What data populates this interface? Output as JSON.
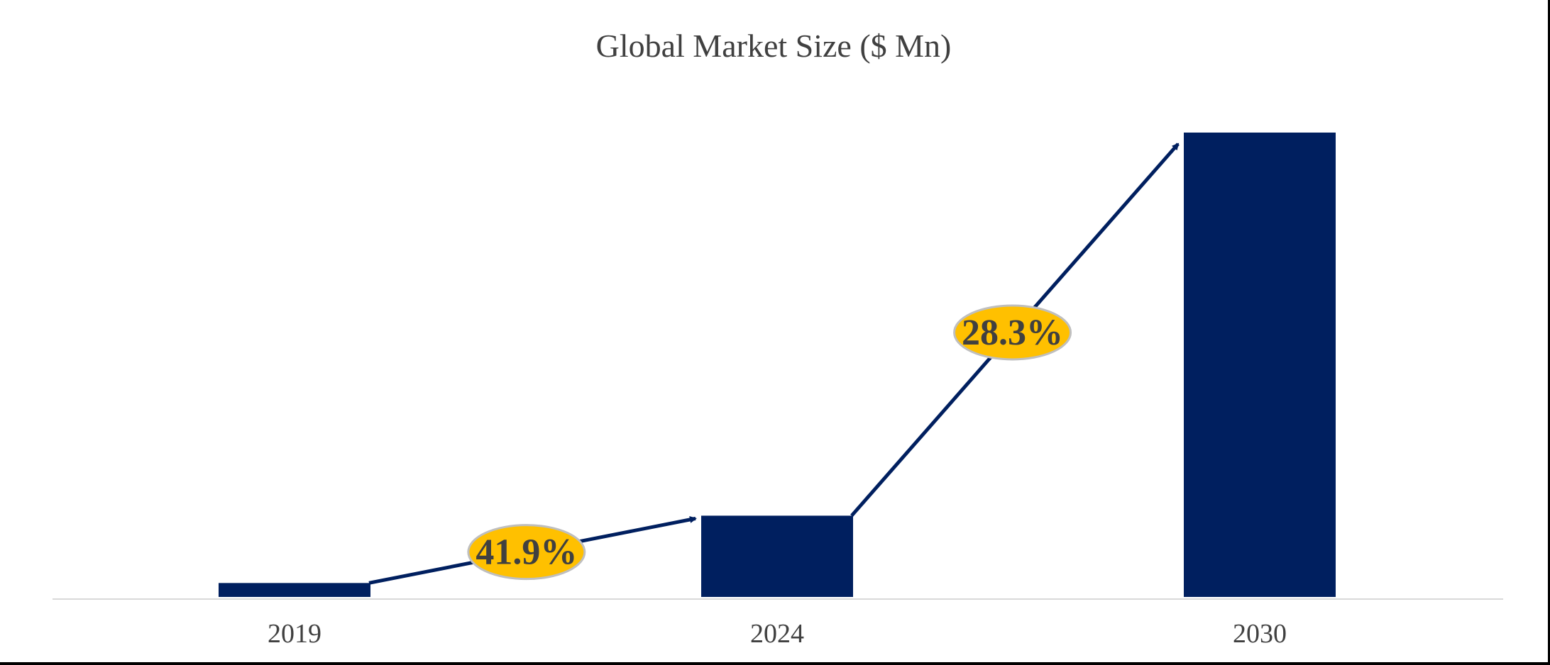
{
  "chart_data": {
    "type": "bar",
    "title": "Global Market Size ($ Mn)",
    "xlabel": "",
    "ylabel": "",
    "categories": [
      "2019",
      "2024",
      "2030"
    ],
    "values": [
      3,
      17.5,
      100
    ],
    "ylim": [
      0,
      100
    ],
    "grid": false,
    "legend": "none",
    "value_note": "values are relative bar heights; no y-axis scale is printed",
    "annotations": [
      {
        "label": "41.9%",
        "from": "2019",
        "to": "2024"
      },
      {
        "label": "28.3%",
        "from": "2024",
        "to": "2030"
      }
    ],
    "colors": {
      "bar": "#001f5f",
      "arrow": "#001f5f",
      "badge_fill": "#ffc000",
      "badge_stroke": "#bfbfbf",
      "text": "#404040",
      "axis": "#d9d9d9"
    }
  }
}
